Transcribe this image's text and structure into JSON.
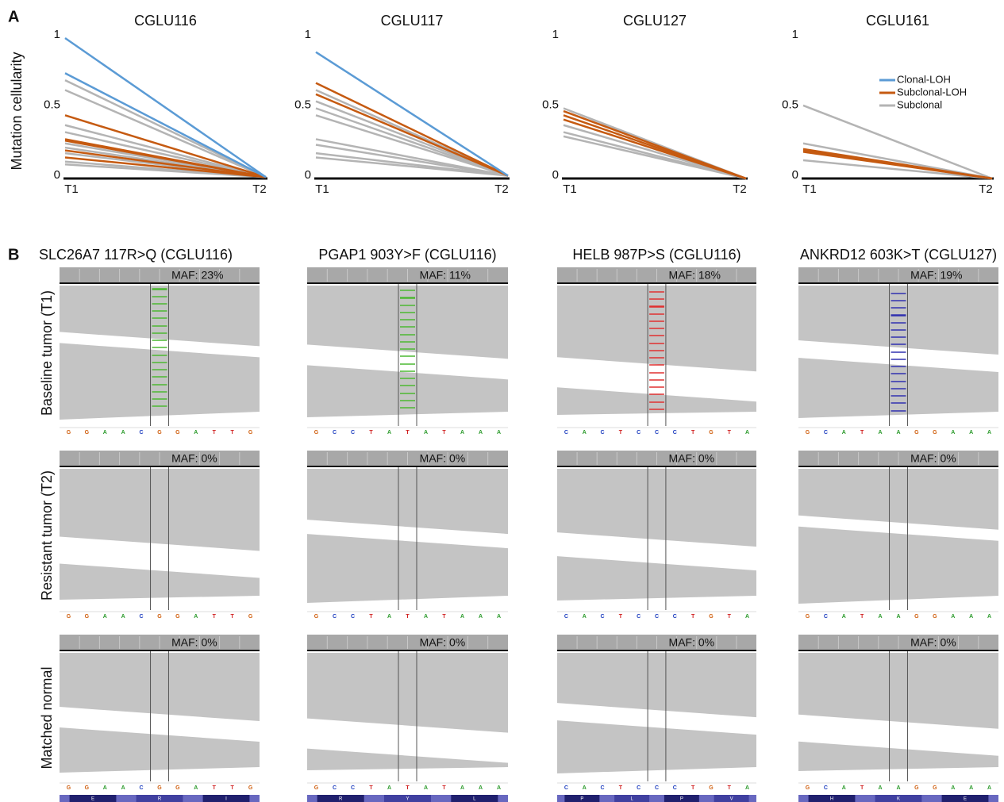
{
  "panel_a": {
    "label": "A",
    "ylabel": "Mutation cellularity",
    "legend": [
      {
        "name": "Clonal-LOH",
        "color": "#5b9bd5"
      },
      {
        "name": "Subclonal-LOH",
        "color": "#c55a11"
      },
      {
        "name": "Subclonal",
        "color": "#b4b4b4"
      }
    ],
    "charts": [
      {
        "type": "line",
        "title": "CGLU116",
        "x": [
          "T1",
          "T2"
        ],
        "ylim": [
          0,
          1
        ],
        "yticks": [
          0,
          0.5,
          1
        ],
        "series": [
          {
            "color": "#b4b4b4",
            "values": [
              0.7,
              0.01
            ]
          },
          {
            "color": "#b4b4b4",
            "values": [
              0.63,
              0.01
            ]
          },
          {
            "color": "#b4b4b4",
            "values": [
              0.38,
              0.01
            ]
          },
          {
            "color": "#b4b4b4",
            "values": [
              0.33,
              0.01
            ]
          },
          {
            "color": "#b4b4b4",
            "values": [
              0.25,
              0.01
            ]
          },
          {
            "color": "#b4b4b4",
            "values": [
              0.22,
              0.01
            ]
          },
          {
            "color": "#b4b4b4",
            "values": [
              0.18,
              0.01
            ]
          },
          {
            "color": "#b4b4b4",
            "values": [
              0.12,
              0.01
            ]
          },
          {
            "color": "#b4b4b4",
            "values": [
              0.1,
              0.01
            ]
          },
          {
            "color": "#c55a11",
            "values": [
              0.45,
              0.01
            ]
          },
          {
            "color": "#c55a11",
            "values": [
              0.28,
              0.01
            ]
          },
          {
            "color": "#c55a11",
            "values": [
              0.27,
              0.01
            ]
          },
          {
            "color": "#c55a11",
            "values": [
              0.2,
              0.01
            ]
          },
          {
            "color": "#c55a11",
            "values": [
              0.15,
              0.01
            ]
          },
          {
            "color": "#5b9bd5",
            "values": [
              1,
              0.01
            ]
          },
          {
            "color": "#5b9bd5",
            "values": [
              0.75,
              0.01
            ]
          }
        ]
      },
      {
        "type": "line",
        "title": "CGLU117",
        "x": [
          "T1",
          "T2"
        ],
        "ylim": [
          0,
          1
        ],
        "yticks": [
          0,
          0.5,
          1
        ],
        "series": [
          {
            "color": "#b4b4b4",
            "values": [
              0.63,
              0.02
            ]
          },
          {
            "color": "#b4b4b4",
            "values": [
              0.55,
              0.02
            ]
          },
          {
            "color": "#b4b4b4",
            "values": [
              0.5,
              0.02
            ]
          },
          {
            "color": "#b4b4b4",
            "values": [
              0.45,
              0.02
            ]
          },
          {
            "color": "#b4b4b4",
            "values": [
              0.28,
              0.02
            ]
          },
          {
            "color": "#b4b4b4",
            "values": [
              0.24,
              0.02
            ]
          },
          {
            "color": "#b4b4b4",
            "values": [
              0.18,
              0.02
            ]
          },
          {
            "color": "#b4b4b4",
            "values": [
              0.15,
              0.02
            ]
          },
          {
            "color": "#c55a11",
            "values": [
              0.68,
              0.02
            ]
          },
          {
            "color": "#c55a11",
            "values": [
              0.6,
              0.02
            ]
          },
          {
            "color": "#5b9bd5",
            "values": [
              0.9,
              0.02
            ]
          }
        ]
      },
      {
        "type": "line",
        "title": "CGLU127",
        "x": [
          "T1",
          "T2"
        ],
        "ylim": [
          0,
          1
        ],
        "yticks": [
          0,
          0.5,
          1
        ],
        "series": [
          {
            "color": "#b4b4b4",
            "values": [
              0.5,
              0
            ]
          },
          {
            "color": "#b4b4b4",
            "values": [
              0.38,
              0
            ]
          },
          {
            "color": "#b4b4b4",
            "values": [
              0.33,
              0
            ]
          },
          {
            "color": "#b4b4b4",
            "values": [
              0.3,
              0
            ]
          },
          {
            "color": "#c55a11",
            "values": [
              0.48,
              0
            ]
          },
          {
            "color": "#c55a11",
            "values": [
              0.45,
              0
            ]
          },
          {
            "color": "#c55a11",
            "values": [
              0.42,
              0
            ]
          }
        ]
      },
      {
        "type": "line",
        "title": "CGLU161",
        "x": [
          "T1",
          "T2"
        ],
        "ylim": [
          0,
          1
        ],
        "yticks": [
          0,
          0.5,
          1
        ],
        "series": [
          {
            "color": "#b4b4b4",
            "values": [
              0.52,
              0
            ]
          },
          {
            "color": "#b4b4b4",
            "values": [
              0.25,
              0
            ]
          },
          {
            "color": "#b4b4b4",
            "values": [
              0.13,
              0
            ]
          },
          {
            "color": "#c55a11",
            "values": [
              0.21,
              0
            ]
          },
          {
            "color": "#c55a11",
            "values": [
              0.2,
              0
            ]
          },
          {
            "color": "#c55a11",
            "values": [
              0.19,
              0
            ]
          }
        ]
      }
    ]
  },
  "panel_b": {
    "label": "B",
    "rows": [
      "Baseline tumor (T1)",
      "Resistant tumor (T2)",
      "Matched normal"
    ],
    "columns": [
      {
        "title": "SLC26A7 117R>Q (CGLU116)",
        "sequence": [
          "G",
          "G",
          "A",
          "A",
          "C",
          "G",
          "G",
          "A",
          "T",
          "T",
          "G"
        ],
        "amino_acids": [
          "E",
          "R",
          "I"
        ],
        "maf": [
          "MAF: 23%",
          "MAF: 0%",
          "MAF: 0%"
        ],
        "variant_color": "#4cb832"
      },
      {
        "title": "PGAP1 903Y>F (CGLU116)",
        "sequence": [
          "G",
          "C",
          "C",
          "T",
          "A",
          "T",
          "A",
          "T",
          "A",
          "A",
          "A"
        ],
        "amino_acids": [
          "R",
          "Y",
          "L"
        ],
        "maf": [
          "MAF: 11%",
          "MAF: 0%",
          "MAF: 0%"
        ],
        "variant_color": "#4cb832"
      },
      {
        "title": "HELB 987P>S (CGLU116)",
        "sequence": [
          "C",
          "A",
          "C",
          "T",
          "C",
          "C",
          "C",
          "T",
          "G",
          "T",
          "A"
        ],
        "amino_acids": [
          "P",
          "L",
          "P",
          "V"
        ],
        "maf": [
          "MAF: 18%",
          "MAF: 0%",
          "MAF: 0%"
        ],
        "variant_color": "#e03030"
      },
      {
        "title": "ANKRD12 603K>T (CGLU127)",
        "sequence": [
          "G",
          "C",
          "A",
          "T",
          "A",
          "A",
          "G",
          "G",
          "A",
          "A",
          "A"
        ],
        "amino_acids": [
          "H",
          "K",
          "E"
        ],
        "maf": [
          "MAF: 19%",
          "MAF: 0%",
          "MAF: 0%"
        ],
        "variant_color": "#3030b0"
      }
    ]
  }
}
